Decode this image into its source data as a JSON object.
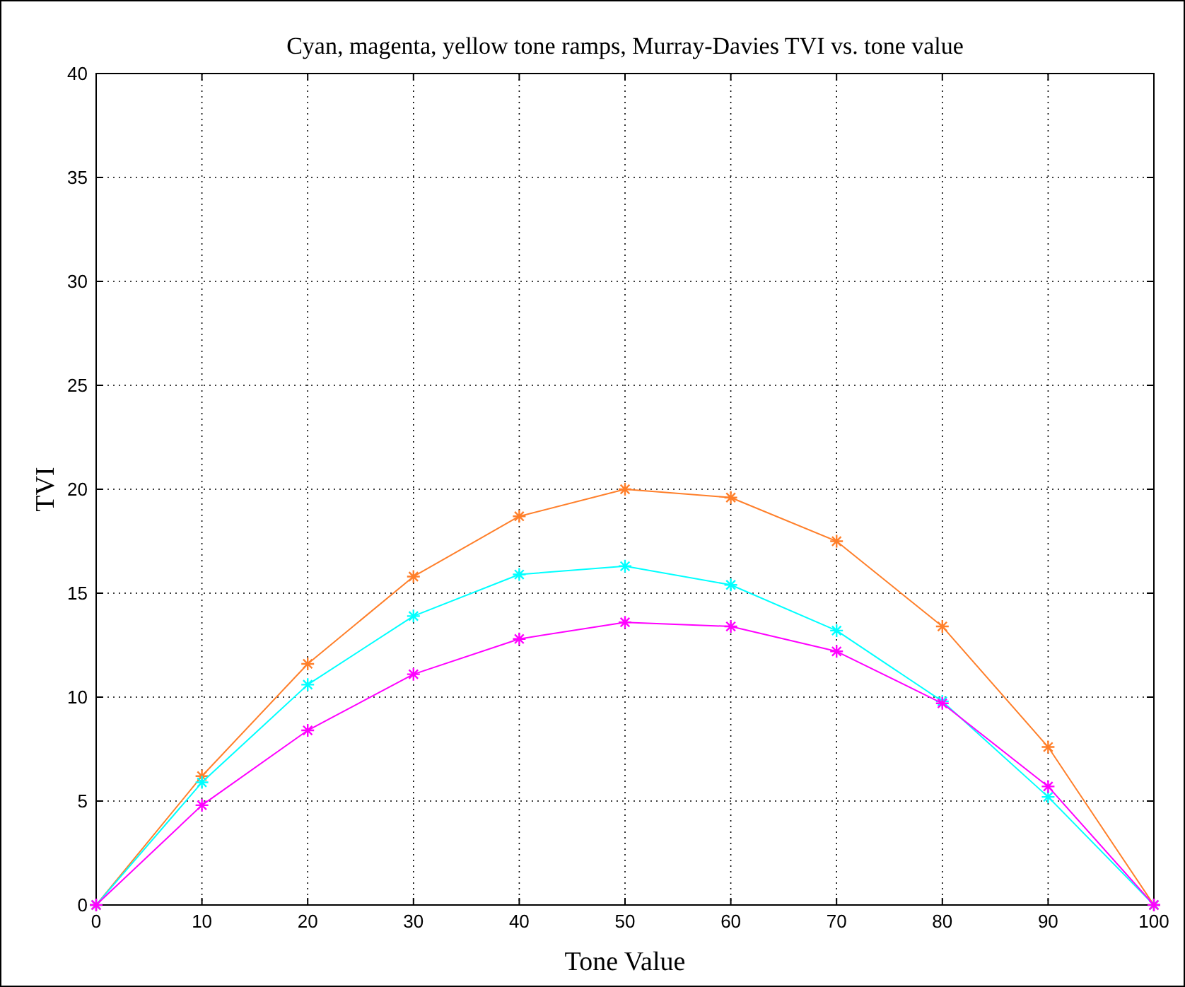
{
  "chart_data": {
    "type": "line",
    "title": "Cyan, magenta, yellow tone ramps, Murray-Davies TVI vs. tone value",
    "xlabel": "Tone Value",
    "ylabel": "TVI",
    "x": [
      0,
      10,
      20,
      30,
      40,
      50,
      60,
      70,
      80,
      90,
      100
    ],
    "series": [
      {
        "color": "#ff7f2a",
        "values": [
          0,
          6.2,
          11.6,
          15.8,
          18.7,
          20.0,
          19.6,
          17.5,
          13.4,
          7.6,
          0
        ]
      },
      {
        "color": "#00ffff",
        "values": [
          0,
          5.9,
          10.6,
          13.9,
          15.9,
          16.3,
          15.4,
          13.2,
          9.8,
          5.2,
          0
        ]
      },
      {
        "color": "#ff00ff",
        "values": [
          0,
          4.8,
          8.4,
          11.1,
          12.8,
          13.6,
          13.4,
          12.2,
          9.7,
          5.7,
          0
        ]
      }
    ],
    "xlim": [
      0,
      100
    ],
    "xticks": [
      0,
      10,
      20,
      30,
      40,
      50,
      60,
      70,
      80,
      90,
      100
    ],
    "ylim": [
      0,
      40
    ],
    "yticks": [
      0,
      5,
      10,
      15,
      20,
      25,
      30,
      35,
      40
    ],
    "grid": true,
    "marker": "cross",
    "line_style": "solid"
  }
}
